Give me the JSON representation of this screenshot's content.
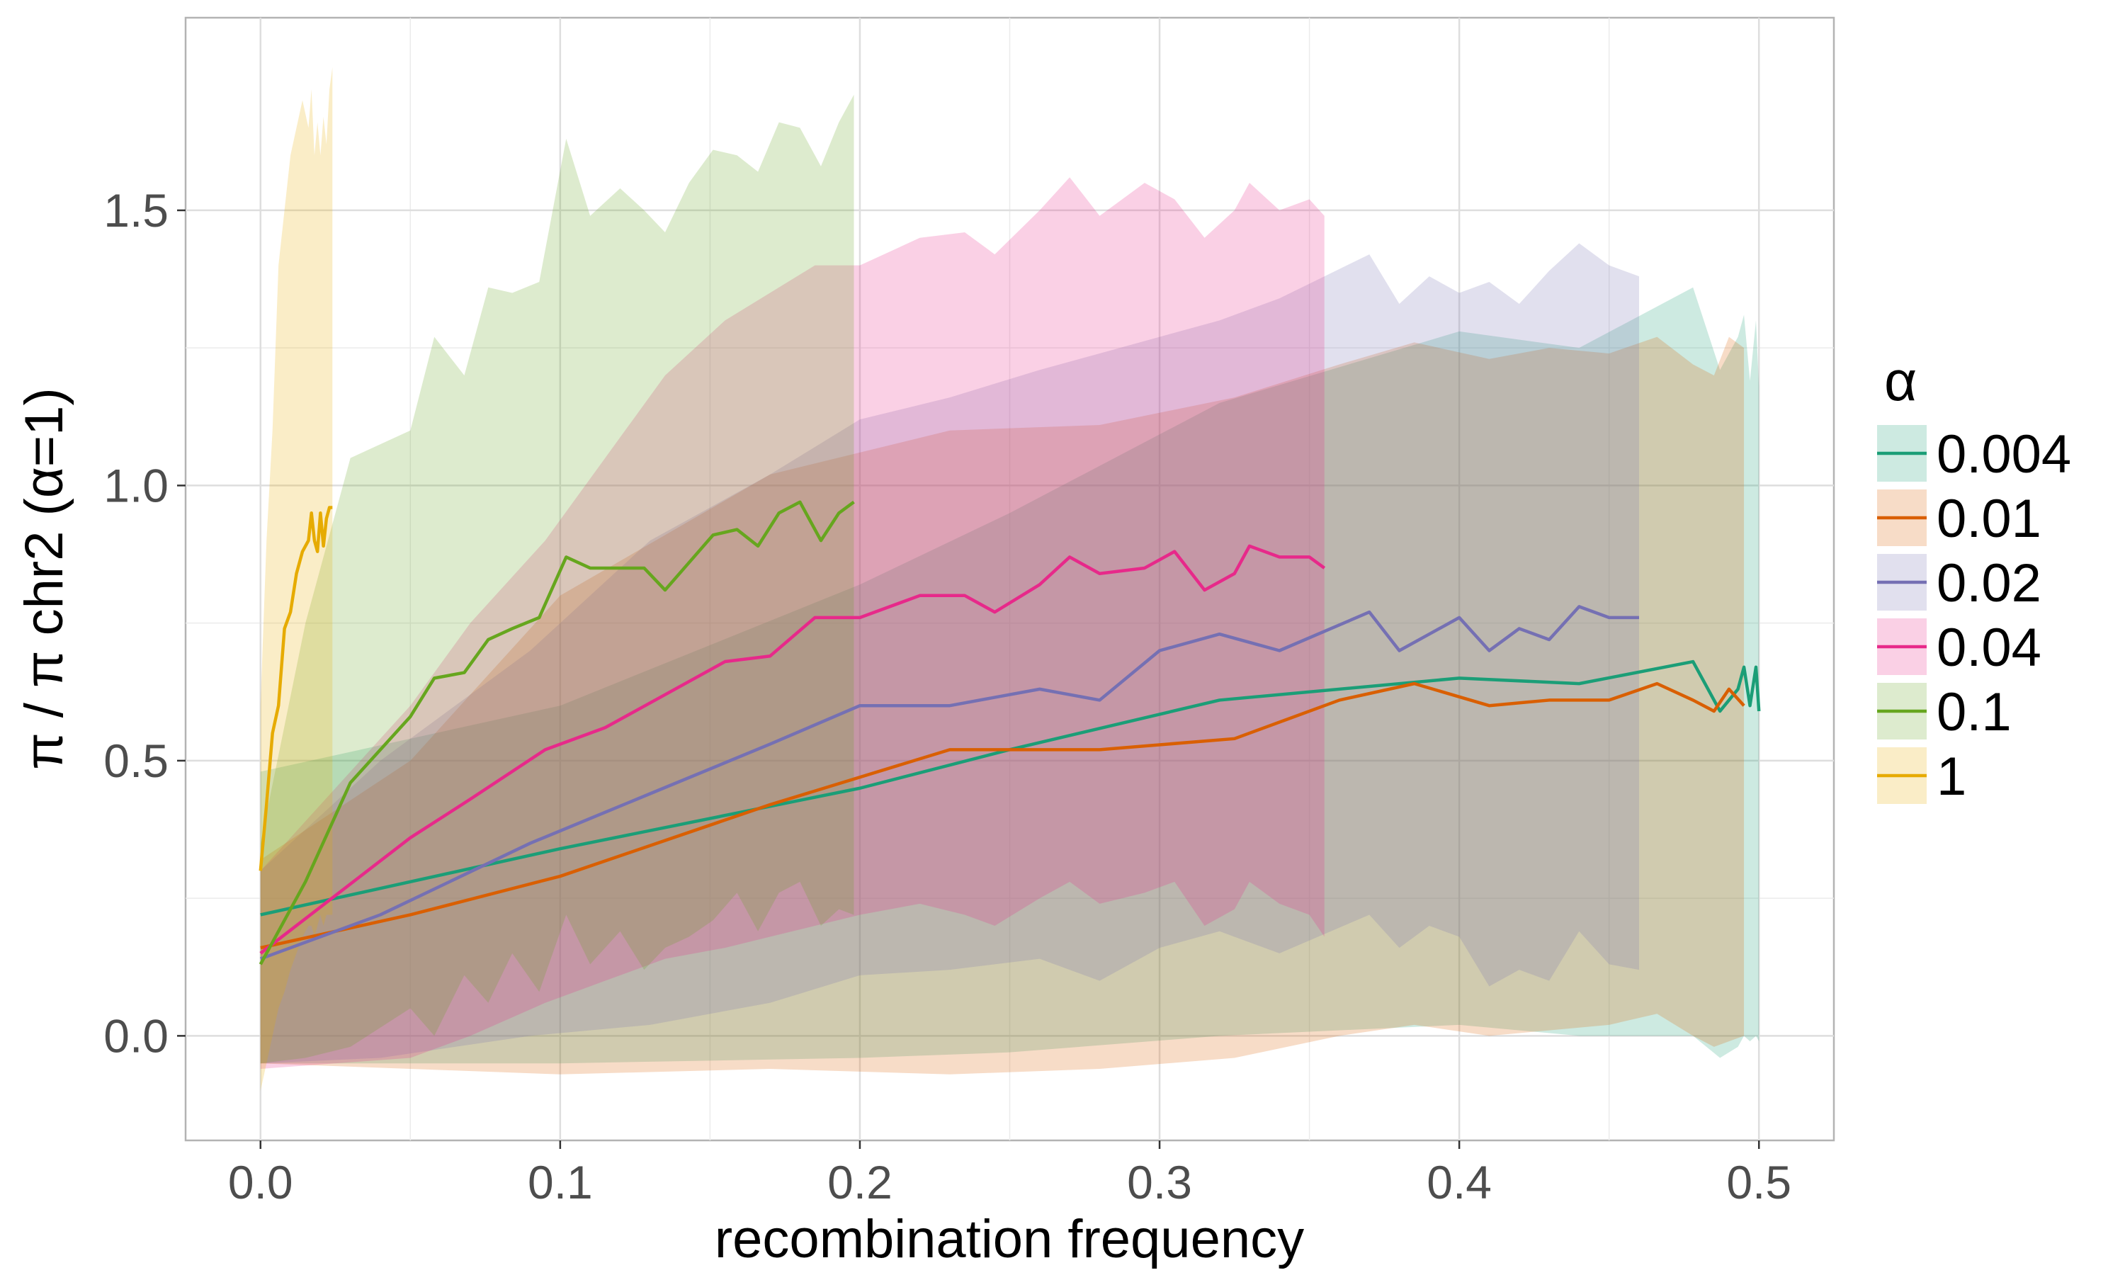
{
  "chart_data": {
    "type": "line",
    "title": "",
    "xlabel": "recombination frequency",
    "ylabel": "π / π chr2 (α=1)",
    "xlim": [
      -0.025,
      0.525
    ],
    "ylim": [
      -0.19,
      1.85
    ],
    "xticks": [
      0.0,
      0.1,
      0.2,
      0.3,
      0.4,
      0.5
    ],
    "xtick_labels": [
      "0.0",
      "0.1",
      "0.2",
      "0.3",
      "0.4",
      "0.5"
    ],
    "yticks": [
      0.0,
      0.5,
      1.0,
      1.5
    ],
    "ytick_labels": [
      "0.0",
      "0.5",
      "1.0",
      "1.5"
    ],
    "grid": true,
    "legend": {
      "title": "α",
      "position": "right"
    },
    "series": [
      {
        "name": "0.004",
        "color": "#1b9e77",
        "x": [
          0.0,
          0.1,
          0.2,
          0.25,
          0.32,
          0.4,
          0.44,
          0.478,
          0.487,
          0.493,
          0.495,
          0.497,
          0.499,
          0.5
        ],
        "y": [
          0.22,
          0.34,
          0.45,
          0.52,
          0.61,
          0.65,
          0.64,
          0.68,
          0.59,
          0.63,
          0.67,
          0.6,
          0.67,
          0.59
        ],
        "upper": [
          0.48,
          0.6,
          0.82,
          0.95,
          1.15,
          1.28,
          1.25,
          1.36,
          1.21,
          1.27,
          1.31,
          1.19,
          1.3,
          1.18
        ],
        "lower": [
          -0.05,
          -0.05,
          -0.04,
          -0.03,
          0.0,
          0.02,
          0.0,
          0.0,
          -0.04,
          -0.02,
          0.0,
          -0.01,
          0.0,
          -0.01
        ]
      },
      {
        "name": "0.01",
        "color": "#d95f02",
        "x": [
          0.0,
          0.05,
          0.1,
          0.17,
          0.23,
          0.28,
          0.325,
          0.36,
          0.385,
          0.41,
          0.43,
          0.45,
          0.466,
          0.478,
          0.485,
          0.49,
          0.495
        ],
        "y": [
          0.16,
          0.22,
          0.29,
          0.42,
          0.52,
          0.52,
          0.54,
          0.61,
          0.64,
          0.6,
          0.61,
          0.61,
          0.64,
          0.61,
          0.59,
          0.63,
          0.6
        ],
        "upper": [
          0.32,
          0.5,
          0.8,
          1.02,
          1.1,
          1.11,
          1.16,
          1.22,
          1.26,
          1.23,
          1.25,
          1.24,
          1.27,
          1.22,
          1.2,
          1.27,
          1.25
        ],
        "lower": [
          -0.05,
          -0.06,
          -0.07,
          -0.06,
          -0.07,
          -0.06,
          -0.04,
          0.0,
          0.02,
          0.0,
          0.01,
          0.02,
          0.04,
          0.0,
          -0.02,
          -0.01,
          0.0
        ]
      },
      {
        "name": "0.02",
        "color": "#7570b3",
        "x": [
          0.0,
          0.04,
          0.09,
          0.13,
          0.17,
          0.2,
          0.23,
          0.26,
          0.28,
          0.3,
          0.32,
          0.34,
          0.37,
          0.38,
          0.39,
          0.4,
          0.41,
          0.42,
          0.43,
          0.44,
          0.45,
          0.46
        ],
        "y": [
          0.14,
          0.22,
          0.35,
          0.44,
          0.53,
          0.6,
          0.6,
          0.63,
          0.61,
          0.7,
          0.73,
          0.7,
          0.77,
          0.7,
          0.73,
          0.76,
          0.7,
          0.74,
          0.72,
          0.78,
          0.76,
          0.76
        ],
        "upper": [
          0.3,
          0.5,
          0.7,
          0.9,
          1.02,
          1.12,
          1.16,
          1.21,
          1.24,
          1.27,
          1.3,
          1.34,
          1.42,
          1.33,
          1.38,
          1.35,
          1.37,
          1.33,
          1.39,
          1.44,
          1.4,
          1.38
        ],
        "lower": [
          -0.05,
          -0.04,
          0.0,
          0.02,
          0.06,
          0.11,
          0.12,
          0.14,
          0.1,
          0.16,
          0.19,
          0.15,
          0.22,
          0.16,
          0.2,
          0.18,
          0.09,
          0.12,
          0.1,
          0.19,
          0.13,
          0.12
        ]
      },
      {
        "name": "0.04",
        "color": "#e7298a",
        "x": [
          0.0,
          0.05,
          0.07,
          0.095,
          0.115,
          0.135,
          0.155,
          0.17,
          0.185,
          0.2,
          0.22,
          0.235,
          0.245,
          0.26,
          0.27,
          0.28,
          0.295,
          0.305,
          0.315,
          0.325,
          0.33,
          0.34,
          0.35,
          0.355
        ],
        "y": [
          0.15,
          0.36,
          0.43,
          0.52,
          0.56,
          0.62,
          0.68,
          0.69,
          0.76,
          0.76,
          0.8,
          0.8,
          0.77,
          0.82,
          0.87,
          0.84,
          0.85,
          0.88,
          0.81,
          0.84,
          0.89,
          0.87,
          0.87,
          0.85
        ],
        "upper": [
          0.3,
          0.6,
          0.75,
          0.9,
          1.05,
          1.2,
          1.3,
          1.35,
          1.4,
          1.4,
          1.45,
          1.46,
          1.42,
          1.5,
          1.56,
          1.49,
          1.55,
          1.52,
          1.45,
          1.5,
          1.55,
          1.5,
          1.52,
          1.49
        ],
        "lower": [
          -0.06,
          -0.04,
          0.0,
          0.06,
          0.1,
          0.14,
          0.16,
          0.18,
          0.2,
          0.22,
          0.24,
          0.22,
          0.2,
          0.25,
          0.28,
          0.24,
          0.26,
          0.28,
          0.2,
          0.23,
          0.28,
          0.24,
          0.22,
          0.18
        ]
      },
      {
        "name": "0.1",
        "color": "#66a61e",
        "x": [
          0.0,
          0.015,
          0.03,
          0.05,
          0.058,
          0.068,
          0.076,
          0.084,
          0.093,
          0.102,
          0.11,
          0.12,
          0.128,
          0.135,
          0.143,
          0.151,
          0.159,
          0.166,
          0.173,
          0.18,
          0.187,
          0.193,
          0.198
        ],
        "y": [
          0.13,
          0.28,
          0.46,
          0.58,
          0.65,
          0.66,
          0.72,
          0.74,
          0.76,
          0.87,
          0.85,
          0.85,
          0.85,
          0.81,
          0.86,
          0.91,
          0.92,
          0.89,
          0.95,
          0.97,
          0.9,
          0.95,
          0.97
        ],
        "upper": [
          0.35,
          0.75,
          1.05,
          1.1,
          1.27,
          1.2,
          1.36,
          1.35,
          1.37,
          1.63,
          1.49,
          1.54,
          1.5,
          1.46,
          1.55,
          1.61,
          1.6,
          1.57,
          1.66,
          1.65,
          1.58,
          1.66,
          1.71
        ],
        "lower": [
          -0.05,
          -0.04,
          -0.02,
          0.05,
          0.0,
          0.11,
          0.06,
          0.15,
          0.08,
          0.22,
          0.13,
          0.19,
          0.12,
          0.16,
          0.18,
          0.21,
          0.26,
          0.19,
          0.26,
          0.28,
          0.2,
          0.23,
          0.22
        ]
      },
      {
        "name": "1",
        "color": "#e6ab02",
        "x": [
          0.0,
          0.002,
          0.004,
          0.006,
          0.008,
          0.01,
          0.012,
          0.014,
          0.016,
          0.017,
          0.018,
          0.019,
          0.02,
          0.021,
          0.022,
          0.023,
          0.024
        ],
        "y": [
          0.3,
          0.42,
          0.55,
          0.6,
          0.74,
          0.77,
          0.84,
          0.88,
          0.9,
          0.95,
          0.9,
          0.88,
          0.95,
          0.89,
          0.94,
          0.96,
          0.96
        ],
        "upper": [
          0.6,
          0.9,
          1.1,
          1.4,
          1.5,
          1.6,
          1.65,
          1.7,
          1.65,
          1.72,
          1.6,
          1.66,
          1.6,
          1.67,
          1.62,
          1.72,
          1.76
        ],
        "lower": [
          -0.1,
          -0.05,
          0.0,
          0.05,
          0.08,
          0.12,
          0.15,
          0.18,
          0.2,
          0.2,
          0.18,
          0.2,
          0.22,
          0.2,
          0.22,
          0.22,
          0.22
        ]
      }
    ]
  }
}
